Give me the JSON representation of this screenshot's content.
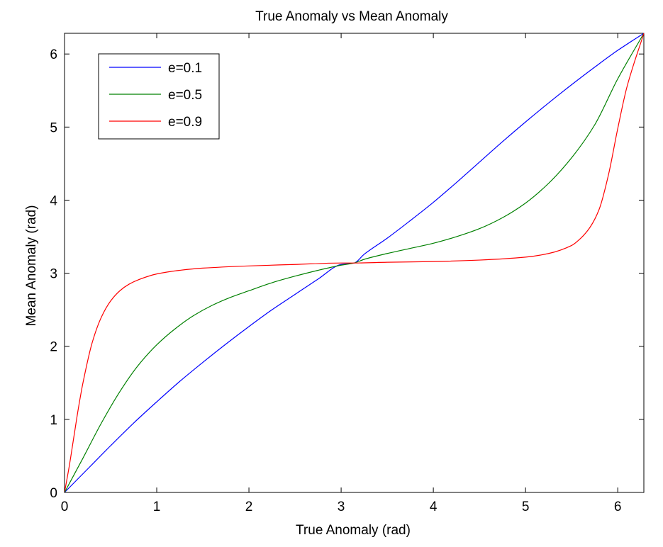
{
  "chart_data": {
    "type": "line",
    "title": "True Anomaly vs Mean Anomaly",
    "xlabel": "True Anomaly  (rad)",
    "ylabel": "Mean Anomaly (rad)",
    "xlim": [
      0,
      6.2832
    ],
    "ylim": [
      0,
      6.2832
    ],
    "xticks": [
      0,
      1,
      2,
      3,
      4,
      5,
      6
    ],
    "yticks": [
      0,
      1,
      2,
      3,
      4,
      5,
      6
    ],
    "grid": false,
    "legend_position": "top-left",
    "series": [
      {
        "name": "e=0.1",
        "color": "#0000ff",
        "x": [
          0,
          0.25,
          0.5,
          0.75,
          1.0,
          1.25,
          1.5,
          1.75,
          2.0,
          2.25,
          2.5,
          2.75,
          3.0,
          3.1416,
          3.25,
          3.5,
          3.75,
          4.0,
          4.25,
          4.5,
          4.75,
          5.0,
          5.25,
          5.5,
          5.75,
          6.0,
          6.2832
        ],
        "y": [
          0,
          0.32,
          0.64,
          0.95,
          1.24,
          1.52,
          1.78,
          2.03,
          2.27,
          2.5,
          2.71,
          2.92,
          3.12,
          3.14,
          3.26,
          3.48,
          3.72,
          3.97,
          4.24,
          4.52,
          4.8,
          5.07,
          5.33,
          5.58,
          5.82,
          6.05,
          6.2832
        ]
      },
      {
        "name": "e=0.5",
        "color": "#008000",
        "x": [
          0,
          0.2,
          0.4,
          0.6,
          0.8,
          1.0,
          1.2,
          1.4,
          1.6,
          1.8,
          2.0,
          2.25,
          2.5,
          2.75,
          3.0,
          3.1416,
          3.25,
          3.5,
          3.75,
          4.0,
          4.25,
          4.5,
          4.75,
          5.0,
          5.25,
          5.5,
          5.75,
          6.0,
          6.2832
        ],
        "y": [
          0,
          0.47,
          0.95,
          1.38,
          1.74,
          2.02,
          2.24,
          2.42,
          2.56,
          2.67,
          2.76,
          2.87,
          2.96,
          3.04,
          3.11,
          3.14,
          3.19,
          3.27,
          3.34,
          3.41,
          3.5,
          3.61,
          3.76,
          3.96,
          4.23,
          4.58,
          5.03,
          5.66,
          6.2832
        ]
      },
      {
        "name": "e=0.9",
        "color": "#ff0000",
        "x": [
          0,
          0.05,
          0.1,
          0.15,
          0.2,
          0.3,
          0.4,
          0.5,
          0.6,
          0.7,
          0.8,
          1.0,
          1.25,
          1.5,
          2.0,
          2.5,
          3.0,
          3.1416,
          3.5,
          4.0,
          4.5,
          5.0,
          5.25,
          5.5,
          5.6,
          5.7,
          5.8,
          5.9,
          6.0,
          6.1,
          6.2832
        ],
        "y": [
          0,
          0.35,
          0.75,
          1.15,
          1.5,
          2.05,
          2.4,
          2.62,
          2.76,
          2.85,
          2.91,
          2.99,
          3.04,
          3.07,
          3.1,
          3.12,
          3.14,
          3.14,
          3.15,
          3.16,
          3.18,
          3.22,
          3.27,
          3.38,
          3.48,
          3.63,
          3.88,
          4.35,
          4.98,
          5.55,
          6.2832
        ]
      }
    ]
  }
}
